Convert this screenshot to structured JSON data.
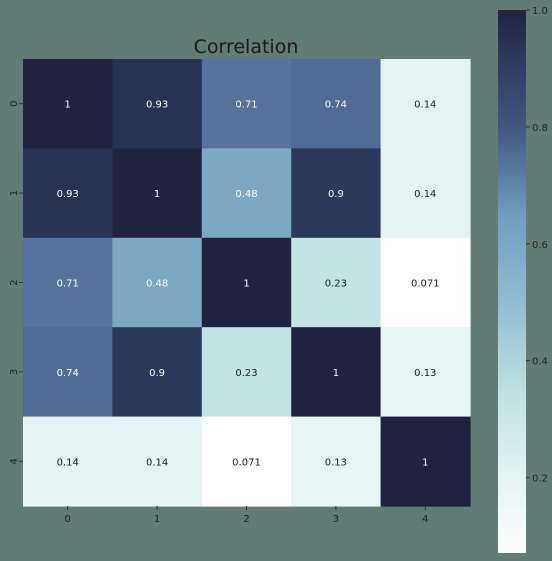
{
  "colors": {
    "background": "#627b74",
    "scale_low": "#ffffff",
    "scale_mid": "#7aa8c3",
    "scale_high": "#20233e",
    "text_dark": "#1f1f1f",
    "text_light": "#ffffff"
  },
  "chart_data": {
    "type": "heatmap",
    "title": "Correlation",
    "x_categories": [
      "0",
      "1",
      "2",
      "3",
      "4"
    ],
    "y_categories": [
      "0",
      "1",
      "2",
      "3",
      "4"
    ],
    "values": [
      [
        1,
        0.93,
        0.71,
        0.74,
        0.14
      ],
      [
        0.93,
        1,
        0.48,
        0.9,
        0.14
      ],
      [
        0.71,
        0.48,
        1,
        0.23,
        0.071
      ],
      [
        0.74,
        0.9,
        0.23,
        1,
        0.13
      ],
      [
        0.14,
        0.14,
        0.071,
        0.13,
        1
      ]
    ],
    "cell_labels": [
      [
        "1",
        "0.93",
        "0.71",
        "0.74",
        "0.14"
      ],
      [
        "0.93",
        "1",
        "0.48",
        "0.9",
        "0.14"
      ],
      [
        "0.71",
        "0.48",
        "1",
        "0.23",
        "0.071"
      ],
      [
        "0.74",
        "0.9",
        "0.23",
        "1",
        "0.13"
      ],
      [
        "0.14",
        "0.14",
        "0.071",
        "0.13",
        "1"
      ]
    ],
    "colorbar": {
      "range": [
        0.071,
        1.0
      ],
      "ticks": [
        0.2,
        0.4,
        0.6,
        0.8,
        1.0
      ],
      "tick_labels": [
        "0.2",
        "0.4",
        "0.6",
        "0.8",
        "1.0"
      ]
    },
    "grid": false
  }
}
